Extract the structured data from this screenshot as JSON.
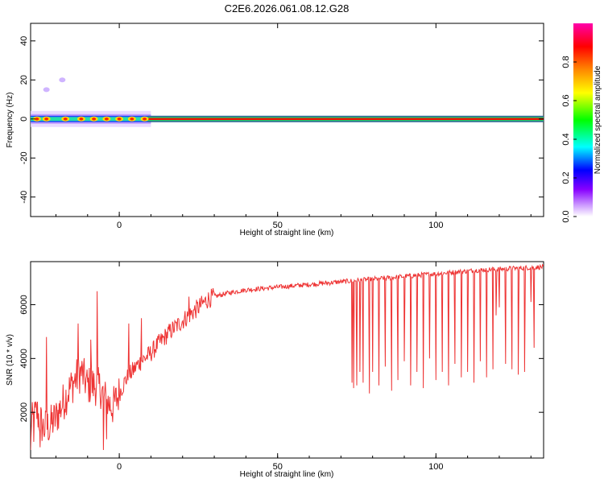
{
  "title": "C2E6.2026.061.08.12.G28",
  "chart_data": [
    {
      "type": "heatmap",
      "xlabel": "Height of straight line (km)",
      "ylabel": "Frequency (Hz)",
      "xlim": [
        -28,
        134
      ],
      "ylim": [
        -50,
        49
      ],
      "x_ticks": [
        0,
        50,
        100
      ],
      "y_ticks": [
        -40,
        -20,
        0,
        20,
        40
      ],
      "colorbar": {
        "label": "Normalized spectral amplitude",
        "range": [
          0,
          1
        ],
        "ticks": [
          "0.0",
          "0.2",
          "0.4",
          "0.6",
          "0.8"
        ],
        "colors": [
          "#ffffff",
          "#cc99ff",
          "#8800ff",
          "#0000ff",
          "#00ffff",
          "#00ff00",
          "#ffff00",
          "#ff8800",
          "#ff0000",
          "#ff00aa"
        ]
      },
      "ridge": {
        "frequency_hz": 0,
        "blob_x": [
          -26,
          -23,
          -17,
          -12,
          -8,
          -4,
          0,
          4,
          8
        ],
        "stray_points": [
          {
            "x": -23,
            "y": 15
          },
          {
            "x": -18,
            "y": 20
          }
        ]
      }
    },
    {
      "type": "line",
      "xlabel": "Height of straight line (km)",
      "ylabel": "SNR (10 * v/v)",
      "xlim": [
        -28,
        134
      ],
      "ylim": [
        300,
        7600
      ],
      "x_ticks": [
        0,
        50,
        100
      ],
      "y_ticks": [
        2000,
        4000,
        6000
      ],
      "color": "#ee3333",
      "profile": {
        "x": [
          -28,
          -26,
          -24,
          -22,
          -20,
          -18,
          -16,
          -14,
          -12,
          -10,
          -8,
          -6,
          -4,
          -2,
          0,
          2,
          4,
          6,
          8,
          10,
          12,
          14,
          16,
          18,
          20,
          22,
          24,
          26,
          28,
          30,
          35,
          40,
          45,
          50,
          55,
          60,
          65,
          70,
          75,
          80,
          85,
          90,
          95,
          100,
          105,
          110,
          115,
          120,
          125,
          130,
          134
        ],
        "y": [
          1500,
          2000,
          1400,
          1500,
          1800,
          2300,
          2800,
          3200,
          3500,
          3000,
          3000,
          2900,
          2400,
          2200,
          2700,
          3200,
          3500,
          3800,
          4000,
          4200,
          4500,
          4750,
          5000,
          5200,
          5400,
          5600,
          5800,
          6000,
          6200,
          6300,
          6450,
          6550,
          6600,
          6650,
          6700,
          6750,
          6800,
          6850,
          6900,
          6950,
          7000,
          7050,
          7100,
          7150,
          7200,
          7250,
          7300,
          7320,
          7350,
          7380,
          7400
        ]
      },
      "peaks": [
        {
          "x": -27,
          "y": 5900
        },
        {
          "x": -25,
          "y": 5000
        },
        {
          "x": -23,
          "y": 4800
        },
        {
          "x": -13,
          "y": 5300
        },
        {
          "x": -9,
          "y": 4700
        },
        {
          "x": -7,
          "y": 6500
        },
        {
          "x": 3,
          "y": 5300
        },
        {
          "x": 7,
          "y": 5500
        },
        {
          "x": 22,
          "y": 6300
        }
      ],
      "dips": [
        {
          "x": -28,
          "y": 600
        },
        {
          "x": -27,
          "y": 900
        },
        {
          "x": -25,
          "y": 700
        },
        {
          "x": -22,
          "y": 1100
        },
        {
          "x": -5,
          "y": 600
        },
        {
          "x": -4,
          "y": 1000
        },
        {
          "x": 73.5,
          "y": 3100
        },
        {
          "x": 74,
          "y": 2900
        },
        {
          "x": 75,
          "y": 3000
        },
        {
          "x": 76,
          "y": 3500
        },
        {
          "x": 77,
          "y": 3100
        },
        {
          "x": 79,
          "y": 2700
        },
        {
          "x": 80,
          "y": 3500
        },
        {
          "x": 82,
          "y": 3000
        },
        {
          "x": 84,
          "y": 3700
        },
        {
          "x": 86,
          "y": 2800
        },
        {
          "x": 88,
          "y": 3200
        },
        {
          "x": 90,
          "y": 3900
        },
        {
          "x": 92,
          "y": 3000
        },
        {
          "x": 94,
          "y": 3500
        },
        {
          "x": 96,
          "y": 2900
        },
        {
          "x": 98,
          "y": 4000
        },
        {
          "x": 100,
          "y": 3200
        },
        {
          "x": 102,
          "y": 3500
        },
        {
          "x": 104,
          "y": 3000
        },
        {
          "x": 106,
          "y": 3800
        },
        {
          "x": 108,
          "y": 3300
        },
        {
          "x": 110,
          "y": 3500
        },
        {
          "x": 112,
          "y": 3100
        },
        {
          "x": 114,
          "y": 3900
        },
        {
          "x": 116,
          "y": 3300
        },
        {
          "x": 118,
          "y": 3600
        },
        {
          "x": 119,
          "y": 5600
        },
        {
          "x": 120,
          "y": 5900
        },
        {
          "x": 122,
          "y": 3800
        },
        {
          "x": 124,
          "y": 3600
        },
        {
          "x": 126,
          "y": 3400
        },
        {
          "x": 128,
          "y": 3500
        },
        {
          "x": 130,
          "y": 6100
        },
        {
          "x": 131,
          "y": 4400
        }
      ]
    }
  ]
}
